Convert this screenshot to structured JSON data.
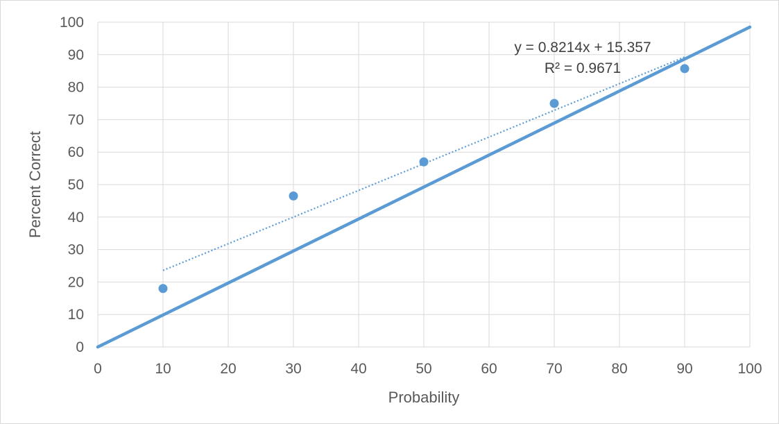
{
  "chart_data": {
    "type": "scatter",
    "xlabel": "Probability",
    "ylabel": "Percent Correct",
    "xlim": [
      0,
      100
    ],
    "ylim": [
      0,
      100
    ],
    "x_ticks": [
      "0",
      "10",
      "20",
      "30",
      "40",
      "50",
      "60",
      "70",
      "80",
      "90",
      "100"
    ],
    "y_ticks": [
      "0",
      "10",
      "20",
      "30",
      "40",
      "50",
      "60",
      "70",
      "80",
      "90",
      "100"
    ],
    "grid": true,
    "legend": "none",
    "series": [
      {
        "type": "scatter",
        "x": [
          10,
          30,
          50,
          70,
          90
        ],
        "y": [
          18,
          46.5,
          57,
          75,
          85.7
        ],
        "color": "#5b9bd5"
      },
      {
        "type": "line",
        "x": [
          0,
          100
        ],
        "y": [
          0,
          98.5
        ],
        "color": "#5b9bd5"
      },
      {
        "type": "trendline",
        "style": "dotted",
        "x": [
          10,
          90
        ],
        "slope": 0.8214,
        "intercept": 15.357,
        "color": "#5b9bd5"
      }
    ],
    "annotations": {
      "equation": "y = 0.8214x + 15.357",
      "r_squared": "R² = 0.9671"
    },
    "colors": {
      "gridline": "#d9d9d9",
      "text": "#595959"
    }
  }
}
